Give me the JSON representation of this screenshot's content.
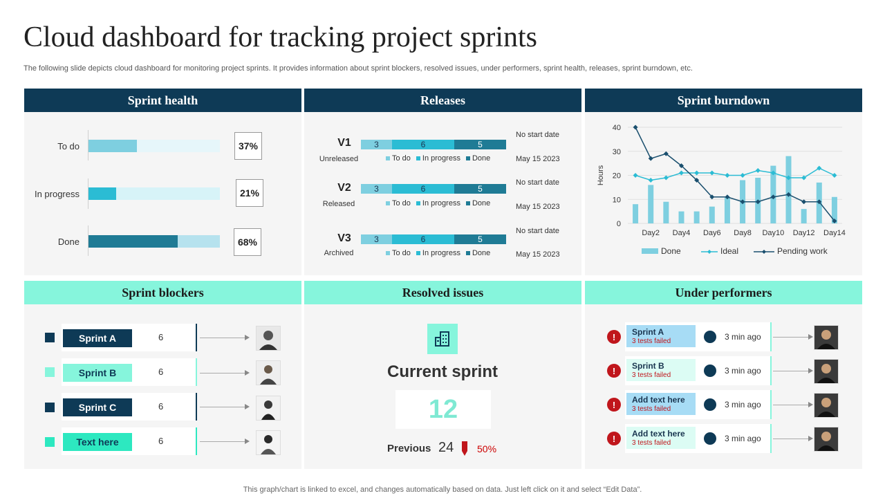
{
  "title": "Cloud dashboard for tracking project sprints",
  "subtitle": "The following slide depicts cloud dashboard for monitoring project sprints. It provides information about sprint blockers, resolved issues, under performers, sprint health, releases, sprint burndown, etc.",
  "footer": "This graph/chart is linked to excel,  and changes automatically based on data. Just left click on it and select “Edit Data”.",
  "colors": {
    "navy": "#0e3a56",
    "mint": "#86f5dc",
    "teal": "#2bbcd4",
    "light_teal": "#7ecfe0",
    "dark_teal": "#1f7b95",
    "alert": "#c0161c"
  },
  "sprint_health": {
    "header": "Sprint health",
    "rows": [
      {
        "label": "To do",
        "fill": 0.37,
        "pct": "37%"
      },
      {
        "label": "In progress",
        "fill": 0.21,
        "pct": "21%"
      },
      {
        "label": "Done",
        "fill": 0.68,
        "pct": "68%"
      }
    ]
  },
  "releases": {
    "header": "Releases",
    "legend": [
      "To do",
      "In progress",
      "Done"
    ],
    "items": [
      {
        "version": "V1",
        "status": "Unreleased",
        "segments": [
          "3",
          "6",
          "5"
        ],
        "date_top": "No start date",
        "date_bottom": "May 15 2023"
      },
      {
        "version": "V2",
        "status": "Released",
        "segments": [
          "3",
          "6",
          "5"
        ],
        "date_top": "No start date",
        "date_bottom": "May 15 2023"
      },
      {
        "version": "V3",
        "status": "Archived",
        "segments": [
          "3",
          "6",
          "5"
        ],
        "date_top": "No start date",
        "date_bottom": "May 15 2023"
      }
    ]
  },
  "sprint_burndown": {
    "header": "Sprint burndown",
    "chart_data": {
      "type": "bar",
      "x": [
        "Day1",
        "Day2",
        "Day3",
        "Day4",
        "Day5",
        "Day6",
        "Day7",
        "Day8",
        "Day9",
        "Day10",
        "Day11",
        "Day12",
        "Day13",
        "Day14"
      ],
      "x_tick_labels": [
        "Day2",
        "Day4",
        "Day6",
        "Day8",
        "Day10",
        "Day12",
        "Day14"
      ],
      "ylabel": "Hours",
      "ylim": [
        0,
        40
      ],
      "yticks": [
        0,
        10,
        20,
        30,
        40
      ],
      "grid": true,
      "legend_position": "bottom",
      "series": [
        {
          "name": "Done",
          "type": "bar",
          "values": [
            8,
            16,
            9,
            5,
            5,
            7,
            11,
            18,
            19,
            24,
            28,
            6,
            17,
            11
          ]
        },
        {
          "name": "Ideal",
          "type": "line",
          "values": [
            20,
            18,
            19,
            21,
            21,
            21,
            20,
            20,
            22,
            21,
            19,
            19,
            23,
            20
          ]
        },
        {
          "name": "Pending work",
          "type": "line",
          "values": [
            40,
            27,
            29,
            24,
            18,
            11,
            11,
            9,
            9,
            11,
            12,
            9,
            9,
            1
          ]
        }
      ]
    }
  },
  "sprint_blockers": {
    "header": "Sprint blockers",
    "items": [
      {
        "name": "Sprint A",
        "count": "6"
      },
      {
        "name": "Sprint B",
        "count": "6"
      },
      {
        "name": "Sprint C",
        "count": "6"
      },
      {
        "name": "Text here",
        "count": "6"
      }
    ]
  },
  "resolved_issues": {
    "header": "Resolved issues",
    "title": "Current sprint",
    "current": "12",
    "previous_label": "Previous",
    "previous_value": "24",
    "change": "50%"
  },
  "under_performers": {
    "header": "Under performers",
    "items": [
      {
        "name": "Sprint A",
        "status": "3 tests failed",
        "time": "3 min ago"
      },
      {
        "name": "Sprint B",
        "status": "3 tests failed",
        "time": "3 min ago"
      },
      {
        "name": "Add text here",
        "status": "3 tests failed",
        "time": "3 min ago"
      },
      {
        "name": "Add text here",
        "status": "3 tests failed",
        "time": "3 min ago"
      }
    ]
  }
}
